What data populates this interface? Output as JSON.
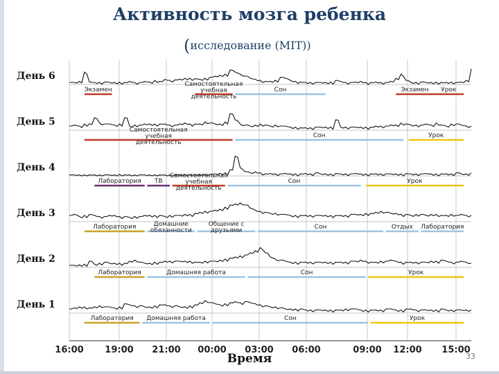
{
  "chart_data": {
    "type": "line",
    "title": "Активность мозга ребенка",
    "subtitle": "исследование (MIT)",
    "xlabel": "Время",
    "ylabel": "",
    "x_ticks": [
      "16:00",
      "19:00",
      "21:00",
      "00:00",
      "03:00",
      "06:00",
      "09:00",
      "12:00",
      "15:00"
    ],
    "series": [
      {
        "name": "День 6",
        "values": [
          0.1,
          0.1,
          0.15,
          0.6,
          0.12,
          0.1,
          0.1,
          0.12,
          0.1,
          0.1,
          0.12,
          0.1,
          0.15,
          0.1,
          0.1,
          0.15,
          0.12,
          0.2,
          0.15,
          0.25,
          0.2,
          0.22,
          0.25,
          0.3,
          0.3,
          0.28,
          0.25,
          0.3,
          0.35,
          0.4,
          0.45,
          0.5,
          0.7,
          0.6,
          0.5,
          0.4,
          0.3,
          0.25,
          0.2,
          0.15,
          0.15,
          0.2,
          0.35,
          0.3,
          0.2,
          0.15,
          0.12,
          0.1,
          0.1,
          0.1,
          0.1,
          0.1,
          0.12,
          0.2,
          0.15,
          0.1,
          0.1,
          0.12,
          0.15,
          0.1,
          0.1,
          0.12,
          0.1,
          0.1,
          0.15,
          0.3,
          0.5,
          0.2,
          0.1,
          0.1,
          0.12,
          0.1,
          0.1,
          0.12,
          0.1,
          0.1,
          0.12,
          0.1,
          0.12,
          0.2,
          0.75
        ],
        "activities": [
          {
            "label": "Экзамен",
            "start": 0.6,
            "end": 1.7,
            "color": "#c0392b"
          },
          {
            "label": "Самостоятельная учебная деятельность",
            "start": 5.0,
            "end": 6.5,
            "color": "#c0392b"
          },
          {
            "label": "Сон",
            "start": 6.6,
            "end": 10.2,
            "color": "#9cc3e4"
          },
          {
            "label": "Экзамен",
            "start": 13.0,
            "end": 14.5,
            "color": "#c0392b"
          },
          {
            "label": "Урок",
            "start": 14.5,
            "end": 15.7,
            "color": "#c0392b"
          }
        ]
      },
      {
        "name": "День 5",
        "values": [
          0.2,
          0.25,
          0.2,
          0.3,
          0.3,
          0.6,
          0.35,
          0.3,
          0.3,
          0.25,
          0.3,
          0.6,
          0.2,
          0.25,
          0.25,
          0.3,
          0.3,
          0.3,
          0.3,
          0.3,
          0.25,
          0.25,
          0.3,
          0.35,
          0.3,
          0.3,
          0.3,
          0.4,
          0.35,
          0.3,
          0.3,
          0.4,
          0.8,
          0.5,
          0.3,
          0.25,
          0.2,
          0.25,
          0.3,
          0.25,
          0.2,
          0.25,
          0.2,
          0.2,
          0.15,
          0.15,
          0.12,
          0.12,
          0.12,
          0.15,
          0.15,
          0.15,
          0.15,
          0.5,
          0.15,
          0.15,
          0.15,
          0.15,
          0.15,
          0.15,
          0.15,
          0.2,
          0.2,
          0.2,
          0.25,
          0.25,
          0.35,
          0.3,
          0.25,
          0.25,
          0.25,
          0.3,
          0.25,
          0.35,
          0.25,
          0.2,
          0.3,
          0.3,
          0.25,
          0.2,
          0.2
        ],
        "activities": [
          {
            "label": "Самостоятельная учебная деятельность",
            "start": 0.6,
            "end": 6.5,
            "color": "#c0392b"
          },
          {
            "label": "Сон",
            "start": 6.6,
            "end": 13.3,
            "color": "#9cc3e4"
          },
          {
            "label": "Урок",
            "start": 13.5,
            "end": 15.7,
            "color": "#f1c40f"
          }
        ]
      },
      {
        "name": "День 4",
        "values": [
          0.05,
          0.05,
          0.05,
          0.05,
          0.05,
          0.05,
          0.05,
          0.05,
          0.05,
          0.05,
          0.08,
          0.05,
          0.05,
          0.05,
          0.05,
          0.05,
          0.05,
          0.05,
          0.05,
          0.05,
          0.05,
          0.05,
          0.05,
          0.05,
          0.05,
          0.05,
          0.05,
          0.08,
          0.08,
          0.1,
          0.12,
          0.15,
          0.3,
          0.95,
          0.4,
          0.2,
          0.15,
          0.2,
          0.15,
          0.1,
          0.12,
          0.1,
          0.1,
          0.12,
          0.1,
          0.1,
          0.1,
          0.12,
          0.1,
          0.15,
          0.1,
          0.1,
          0.1,
          0.12,
          0.1,
          0.1,
          0.1,
          0.12,
          0.1,
          0.1,
          0.1,
          0.1,
          0.1,
          0.1,
          0.1,
          0.1,
          0.1,
          0.12,
          0.1,
          0.1,
          0.1,
          0.12,
          0.1,
          0.1,
          0.1,
          0.1,
          0.1,
          0.15,
          0.1,
          0.1,
          0.15
        ],
        "activities": [
          {
            "label": "Лаборатория",
            "start": 1.0,
            "end": 3.0,
            "color": "#6c2e6e"
          },
          {
            "label": "ТВ",
            "start": 3.1,
            "end": 4.0,
            "color": "#6c2e6e"
          },
          {
            "label": "Самостоятельная учебная деятельность",
            "start": 4.1,
            "end": 6.2,
            "color": "#c0392b"
          },
          {
            "label": "Сон",
            "start": 6.3,
            "end": 11.6,
            "color": "#9cc3e4"
          },
          {
            "label": "Урок",
            "start": 11.8,
            "end": 15.7,
            "color": "#f1c40f"
          }
        ]
      },
      {
        "name": "День 3",
        "values": [
          0.3,
          0.35,
          0.25,
          0.3,
          0.35,
          0.3,
          0.25,
          0.25,
          0.3,
          0.3,
          0.25,
          0.25,
          0.2,
          0.25,
          0.25,
          0.3,
          0.3,
          0.3,
          0.3,
          0.25,
          0.3,
          0.3,
          0.3,
          0.35,
          0.35,
          0.4,
          0.45,
          0.5,
          0.5,
          0.55,
          0.6,
          0.7,
          0.8,
          0.85,
          0.9,
          0.8,
          0.65,
          0.55,
          0.5,
          0.45,
          0.4,
          0.4,
          0.35,
          0.35,
          0.3,
          0.3,
          0.3,
          0.3,
          0.3,
          0.3,
          0.3,
          0.3,
          0.3,
          0.3,
          0.3,
          0.3,
          0.35,
          0.35,
          0.35,
          0.4,
          0.4,
          0.45,
          0.5,
          0.45,
          0.4,
          0.4,
          0.35,
          0.35,
          0.3,
          0.35,
          0.35,
          0.3,
          0.35,
          0.35,
          0.3,
          0.3,
          0.35,
          0.3,
          0.35,
          0.3,
          0.3
        ],
        "activities": [
          {
            "label": "Лаборатория",
            "start": 0.6,
            "end": 3.0,
            "color": "#c9a227"
          },
          {
            "label": "Домашние обязанности",
            "start": 3.1,
            "end": 5.0,
            "color": "#9cc3e4"
          },
          {
            "label": "Общение с друзьями",
            "start": 5.1,
            "end": 7.4,
            "color": "#9cc3e4"
          },
          {
            "label": "Сон",
            "start": 7.5,
            "end": 12.5,
            "color": "#9cc3e4"
          },
          {
            "label": "Отдых",
            "start": 12.6,
            "end": 13.9,
            "color": "#9cc3e4"
          },
          {
            "label": "Лаборатория",
            "start": 14.0,
            "end": 15.7,
            "color": "#9cc3e4"
          }
        ]
      },
      {
        "name": "День 2",
        "values": [
          0.1,
          0.1,
          0.12,
          0.15,
          0.3,
          0.15,
          0.2,
          0.25,
          0.2,
          0.2,
          0.2,
          0.2,
          0.3,
          0.35,
          0.25,
          0.2,
          0.2,
          0.25,
          0.25,
          0.3,
          0.3,
          0.3,
          0.3,
          0.3,
          0.3,
          0.25,
          0.25,
          0.3,
          0.3,
          0.3,
          0.35,
          0.4,
          0.45,
          0.5,
          0.55,
          0.6,
          0.7,
          0.8,
          0.95,
          0.7,
          0.5,
          0.4,
          0.35,
          0.3,
          0.25,
          0.25,
          0.25,
          0.25,
          0.25,
          0.25,
          0.25,
          0.25,
          0.25,
          0.25,
          0.25,
          0.25,
          0.3,
          0.3,
          0.35,
          0.3,
          0.25,
          0.25,
          0.3,
          0.3,
          0.35,
          0.3,
          0.25,
          0.25,
          0.25,
          0.25,
          0.25,
          0.25,
          0.3,
          0.3,
          0.35,
          0.3,
          0.25,
          0.25,
          0.3,
          0.25,
          0.2
        ],
        "activities": [
          {
            "label": "Лаборатория",
            "start": 1.0,
            "end": 3.0,
            "color": "#c9a227"
          },
          {
            "label": "Домашняя работа",
            "start": 3.1,
            "end": 7.0,
            "color": "#9cc3e4"
          },
          {
            "label": "Сон",
            "start": 7.1,
            "end": 11.8,
            "color": "#9cc3e4"
          },
          {
            "label": "Урок",
            "start": 11.9,
            "end": 15.7,
            "color": "#f1c40f"
          }
        ]
      },
      {
        "name": "День 1",
        "values": [
          0.2,
          0.25,
          0.3,
          0.3,
          0.25,
          0.3,
          0.35,
          0.3,
          0.3,
          0.25,
          0.3,
          0.45,
          0.4,
          0.35,
          0.35,
          0.3,
          0.3,
          0.35,
          0.4,
          0.4,
          0.35,
          0.35,
          0.3,
          0.3,
          0.35,
          0.4,
          0.5,
          0.6,
          0.5,
          0.45,
          0.4,
          0.45,
          0.5,
          0.55,
          0.5,
          0.55,
          0.5,
          0.45,
          0.4,
          0.35,
          0.3,
          0.3,
          0.25,
          0.2,
          0.2,
          0.2,
          0.2,
          0.15,
          0.15,
          0.15,
          0.15,
          0.15,
          0.15,
          0.15,
          0.15,
          0.2,
          0.2,
          0.2,
          0.15,
          0.15,
          0.15,
          0.15,
          0.15,
          0.2,
          0.2,
          0.15,
          0.15,
          0.2,
          0.2,
          0.15,
          0.15,
          0.15,
          0.15,
          0.15,
          0.2,
          0.15,
          0.15,
          0.15,
          0.15,
          0.15,
          0.15
        ],
        "activities": [
          {
            "label": "Лаборатория",
            "start": 0.6,
            "end": 2.8,
            "color": "#c9a227"
          },
          {
            "label": "Домашняя работа",
            "start": 2.9,
            "end": 5.6,
            "color": "#9cc3e4"
          },
          {
            "label": "Сон",
            "start": 5.7,
            "end": 11.9,
            "color": "#9cc3e4"
          },
          {
            "label": "Урок",
            "start": 12.0,
            "end": 15.7,
            "color": "#f1c40f"
          }
        ]
      }
    ],
    "grid": true,
    "legend": "none"
  },
  "page": {
    "slide_number": "33"
  }
}
